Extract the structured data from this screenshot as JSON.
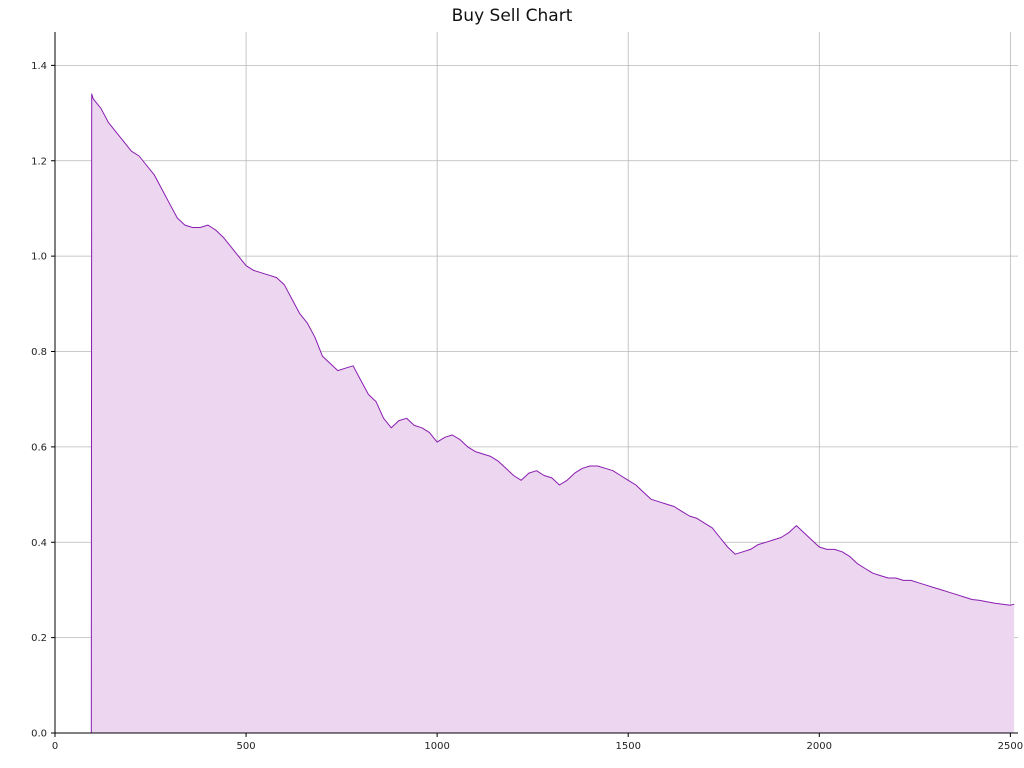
{
  "chart_data": {
    "type": "area",
    "title": "Buy Sell Chart",
    "xlabel": "",
    "ylabel": "",
    "xlim": [
      0,
      2520
    ],
    "ylim": [
      0,
      1.47
    ],
    "grid": true,
    "legend": "none",
    "x_ticks": [
      0,
      500,
      1000,
      1500,
      2000,
      2500
    ],
    "x_tick_labels": [
      "0",
      "500",
      "1000",
      "1500",
      "2000",
      "2500"
    ],
    "y_ticks": [
      0.0,
      0.2,
      0.4,
      0.6,
      0.8,
      1.0,
      1.2,
      1.4
    ],
    "y_tick_labels": [
      "0.0",
      "0.2",
      "0.4",
      "0.6",
      "0.8",
      "1.0",
      "1.2",
      "1.4"
    ],
    "colors": {
      "line": "#8a1db0",
      "fill": "#ecd6f0",
      "grid": "#b8b8b8",
      "axis": "#000000"
    },
    "series": [
      {
        "x": [
          0,
          95,
          96,
          100,
          120,
          140,
          160,
          180,
          200,
          220,
          240,
          260,
          280,
          300,
          320,
          340,
          360,
          380,
          400,
          410,
          420,
          440,
          460,
          480,
          500,
          520,
          540,
          560,
          580,
          600,
          620,
          640,
          660,
          680,
          700,
          720,
          740,
          760,
          780,
          800,
          820,
          840,
          860,
          880,
          900,
          920,
          940,
          960,
          980,
          1000,
          1020,
          1040,
          1060,
          1080,
          1100,
          1120,
          1140,
          1160,
          1180,
          1200,
          1220,
          1240,
          1260,
          1280,
          1300,
          1320,
          1340,
          1360,
          1380,
          1400,
          1420,
          1440,
          1460,
          1480,
          1500,
          1520,
          1540,
          1560,
          1580,
          1600,
          1620,
          1640,
          1660,
          1680,
          1700,
          1720,
          1740,
          1760,
          1780,
          1800,
          1820,
          1840,
          1860,
          1880,
          1900,
          1920,
          1940,
          1960,
          1980,
          2000,
          2020,
          2040,
          2060,
          2080,
          2100,
          2120,
          2140,
          2160,
          2180,
          2200,
          2220,
          2240,
          2260,
          2280,
          2300,
          2320,
          2340,
          2360,
          2380,
          2400,
          2420,
          2440,
          2460,
          2480,
          2500,
          2510
        ],
        "y": [
          0.0,
          0.0,
          1.34,
          1.33,
          1.31,
          1.28,
          1.26,
          1.24,
          1.22,
          1.21,
          1.19,
          1.17,
          1.14,
          1.11,
          1.08,
          1.065,
          1.06,
          1.06,
          1.065,
          1.06,
          1.055,
          1.04,
          1.02,
          1.0,
          0.98,
          0.97,
          0.965,
          0.96,
          0.955,
          0.94,
          0.91,
          0.88,
          0.86,
          0.83,
          0.79,
          0.775,
          0.76,
          0.765,
          0.77,
          0.74,
          0.71,
          0.695,
          0.66,
          0.64,
          0.655,
          0.66,
          0.645,
          0.64,
          0.63,
          0.61,
          0.62,
          0.625,
          0.615,
          0.6,
          0.59,
          0.585,
          0.58,
          0.57,
          0.555,
          0.54,
          0.53,
          0.545,
          0.55,
          0.54,
          0.535,
          0.52,
          0.53,
          0.545,
          0.555,
          0.56,
          0.56,
          0.555,
          0.55,
          0.54,
          0.53,
          0.52,
          0.505,
          0.49,
          0.485,
          0.48,
          0.475,
          0.465,
          0.455,
          0.45,
          0.44,
          0.43,
          0.41,
          0.39,
          0.375,
          0.38,
          0.385,
          0.395,
          0.4,
          0.405,
          0.41,
          0.42,
          0.435,
          0.42,
          0.405,
          0.39,
          0.385,
          0.385,
          0.38,
          0.37,
          0.355,
          0.345,
          0.335,
          0.33,
          0.325,
          0.325,
          0.32,
          0.32,
          0.315,
          0.31,
          0.305,
          0.3,
          0.295,
          0.29,
          0.285,
          0.28,
          0.278,
          0.275,
          0.272,
          0.27,
          0.268,
          0.27
        ]
      }
    ]
  }
}
